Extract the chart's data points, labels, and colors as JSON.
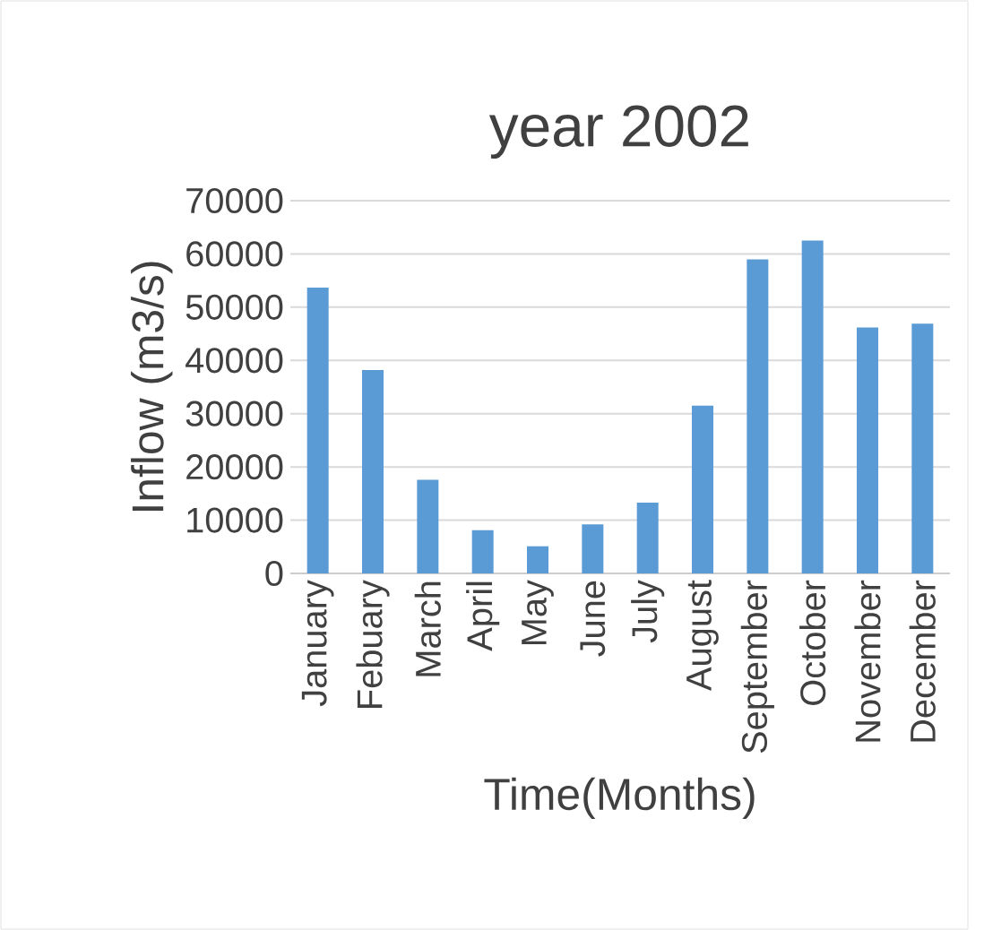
{
  "chart_data": {
    "type": "bar",
    "title": "year 2002",
    "xlabel": "Time(Months)",
    "ylabel": "Inflow (m3/s)",
    "categories": [
      "January",
      "Febuary",
      "March",
      "April",
      "May",
      "June",
      "July",
      "August",
      "September",
      "October",
      "November",
      "December"
    ],
    "values": [
      53700,
      38200,
      17600,
      8100,
      5100,
      9200,
      13300,
      31500,
      59000,
      62500,
      46200,
      46900
    ],
    "color": "#5b9bd5",
    "ylim": [
      0,
      70000
    ],
    "yticks": [
      0,
      10000,
      20000,
      30000,
      40000,
      50000,
      60000,
      70000
    ],
    "grid": "y"
  }
}
